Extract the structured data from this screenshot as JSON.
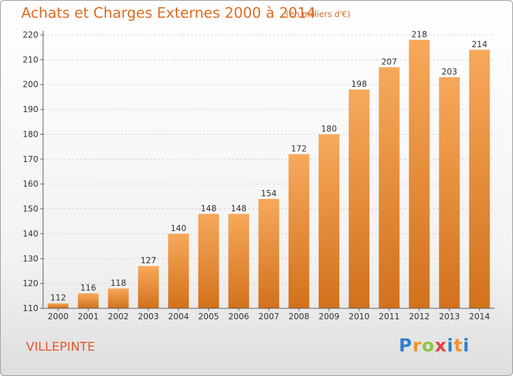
{
  "header": {
    "title": "Achats et Charges Externes 2000 à 2014",
    "unit": "(en milliers d'€)"
  },
  "footer": {
    "city": "VILLEPINTE",
    "brand": {
      "letters": [
        "P",
        "r",
        "o",
        "x",
        "i",
        "t",
        "i"
      ],
      "colors": [
        "#2f7fd0",
        "#f0932b",
        "#8cc63f",
        "#e8413c",
        "#2f7fd0",
        "#f0932b",
        "#2f7fd0"
      ]
    }
  },
  "colors": {
    "bar_light": "#f7a95b",
    "bar_dark": "#d2711c",
    "axis": "#555555",
    "grid": "#cfcfcf"
  },
  "chart_data": {
    "type": "bar",
    "title": "Achats et Charges Externes 2000 à 2014",
    "subtitle": "(en milliers d'€)",
    "categories": [
      "2000",
      "2001",
      "2002",
      "2003",
      "2004",
      "2005",
      "2006",
      "2007",
      "2008",
      "2009",
      "2010",
      "2011",
      "2012",
      "2013",
      "2014"
    ],
    "values": [
      112,
      116,
      118,
      127,
      140,
      148,
      148,
      154,
      172,
      180,
      198,
      207,
      218,
      203,
      214
    ],
    "ylim": [
      110,
      220
    ],
    "yticks": [
      110,
      120,
      130,
      140,
      150,
      160,
      170,
      180,
      190,
      200,
      210,
      220
    ],
    "grid": true,
    "data_labels": true
  }
}
